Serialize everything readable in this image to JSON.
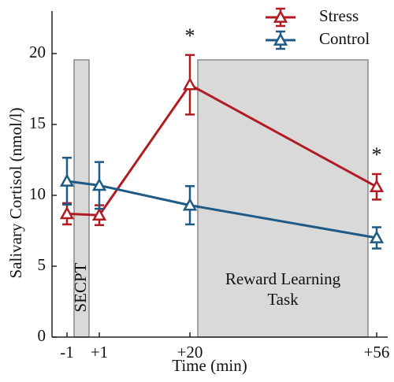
{
  "chart_data": {
    "type": "line",
    "x_label": "Time (min)",
    "y_label": "Salivary Cortisol (nmol/l)",
    "categories": [
      "-1",
      "+1",
      "+20",
      "+56"
    ],
    "series": [
      {
        "name": "Stress",
        "color": "#b01c22",
        "values": [
          8.7,
          8.6,
          17.8,
          10.6
        ],
        "errors": [
          0.75,
          0.7,
          2.1,
          0.9
        ]
      },
      {
        "name": "Control",
        "color": "#1f5a85",
        "values": [
          11.0,
          10.7,
          9.3,
          7.0
        ],
        "errors": [
          1.65,
          1.65,
          1.35,
          0.75
        ]
      }
    ],
    "ylim": [
      0,
      23
    ],
    "yticks": [
      0,
      5,
      10,
      15,
      20
    ],
    "regions": [
      {
        "label": [
          "SECPT"
        ]
      },
      {
        "label": [
          "Reward Learning",
          "Task"
        ]
      }
    ],
    "annotations": [
      "*",
      "*"
    ],
    "legend": "top-right"
  }
}
